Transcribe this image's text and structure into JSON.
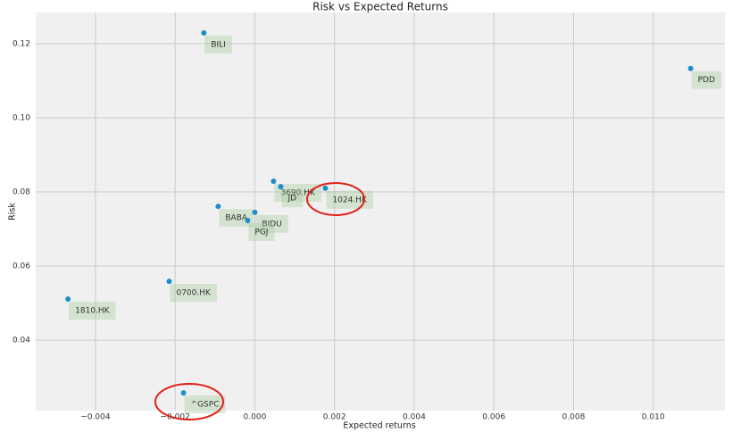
{
  "chart_data": {
    "type": "scatter",
    "title": "Risk vs Expected Returns",
    "x_label": "Expected returns",
    "y_label": "Risk",
    "labels": [
      "BILI",
      "PDD",
      "3690.HK",
      "JD",
      "1024.HK",
      "BABA",
      "BIDU",
      "PGJ",
      "0700.HK",
      "1810.HK",
      "^GSPC"
    ],
    "x": [
      -0.00128,
      0.01094,
      0.00047,
      0.00065,
      0.00177,
      -0.00092,
      0.0,
      -0.00018,
      -0.00215,
      -0.00469,
      -0.00179
    ],
    "values": [
      0.1229,
      0.1133,
      0.0829,
      0.0814,
      0.081,
      0.0761,
      0.0745,
      0.0723,
      0.0559,
      0.0511,
      0.0258
    ],
    "color": "#1a8fca",
    "xlim": [
      -0.0055,
      0.0118
    ],
    "ylim": [
      0.021,
      0.1284
    ],
    "xticks": [
      {
        "value": -0.004,
        "label": "−0.004"
      },
      {
        "value": -0.002,
        "label": "−0.002"
      },
      {
        "value": 0,
        "label": "0.000"
      },
      {
        "value": 0.002,
        "label": "0.002"
      },
      {
        "value": 0.004,
        "label": "0.004"
      },
      {
        "value": 0.006,
        "label": "0.006"
      },
      {
        "value": 0.008,
        "label": "0.008"
      },
      {
        "value": 0.01,
        "label": "0.010"
      }
    ],
    "yticks": [
      {
        "value": 0.04,
        "label": "0.04"
      },
      {
        "value": 0.06,
        "label": "0.06"
      },
      {
        "value": 0.08,
        "label": "0.08"
      },
      {
        "value": 0.1,
        "label": "0.10"
      },
      {
        "value": 0.12,
        "label": "0.12"
      }
    ],
    "grid": true
  }
}
